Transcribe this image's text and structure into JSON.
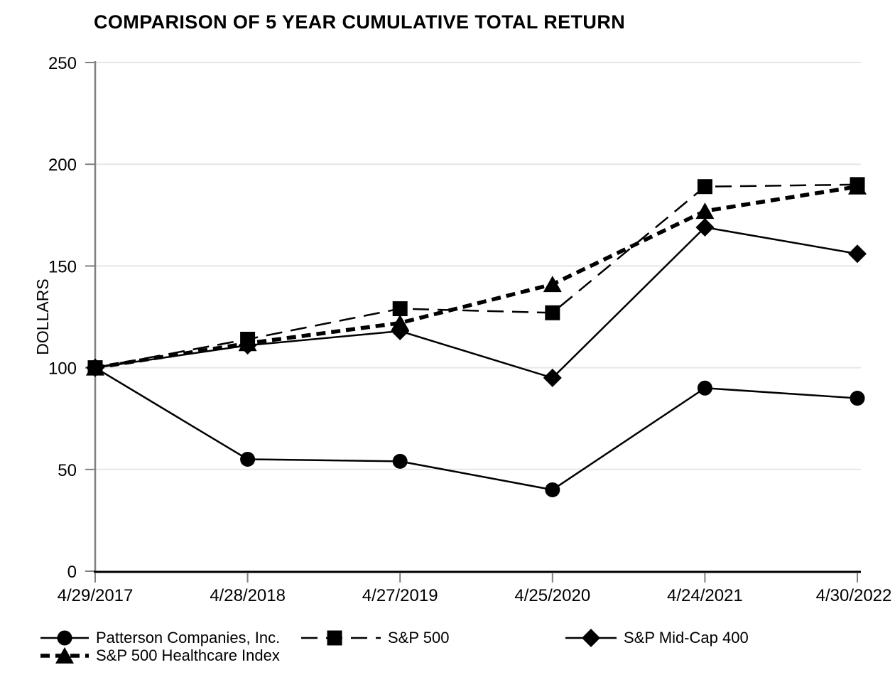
{
  "title": "COMPARISON OF 5 YEAR CUMULATIVE TOTAL RETURN",
  "chart_data": {
    "type": "line",
    "title": "COMPARISON OF 5 YEAR CUMULATIVE TOTAL RETURN",
    "xlabel": "",
    "ylabel": "DOLLARS",
    "ylim": [
      0,
      250
    ],
    "yticks": [
      0,
      50,
      100,
      150,
      200,
      250
    ],
    "grid": true,
    "legend_position": "bottom",
    "categories": [
      "4/29/2017",
      "4/28/2018",
      "4/27/2019",
      "4/25/2020",
      "4/24/2021",
      "4/30/2022"
    ],
    "series": [
      {
        "name": "Patterson Companies, Inc.",
        "values": [
          100,
          55,
          54,
          40,
          90,
          85
        ],
        "marker": "circle",
        "line_style": "solid",
        "color": "#000000"
      },
      {
        "name": "S&P 500",
        "values": [
          100,
          114,
          129,
          127,
          189,
          190
        ],
        "marker": "square",
        "line_style": "dashed",
        "color": "#000000"
      },
      {
        "name": "S&P Mid-Cap 400",
        "values": [
          100,
          111,
          118,
          95,
          169,
          156
        ],
        "marker": "diamond",
        "line_style": "solid",
        "color": "#000000"
      },
      {
        "name": "S&P 500 Healthcare Index",
        "values": [
          100,
          112,
          122,
          141,
          177,
          189
        ],
        "marker": "triangle",
        "line_style": "thick-dashed",
        "color": "#000000"
      }
    ],
    "colors": {
      "series": "#000000",
      "y_axis": "#808080",
      "x_axis": "#000000",
      "gridline": "#e7e7e7",
      "background": "#ffffff"
    }
  }
}
